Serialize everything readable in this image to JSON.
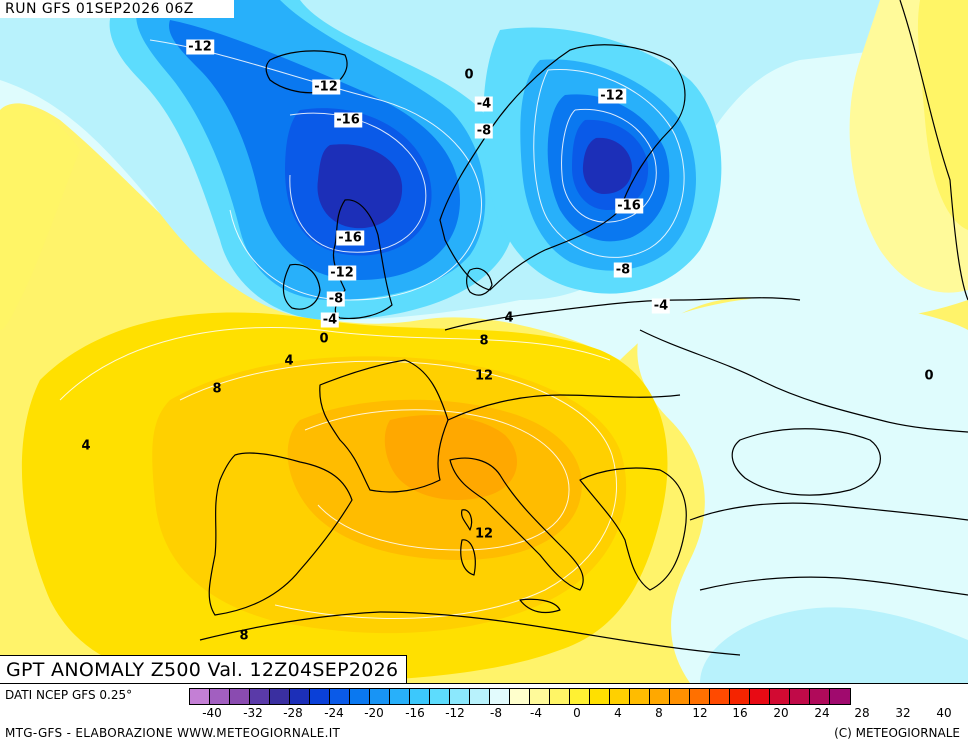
{
  "header": {
    "run": "RUN GFS 01SEP2026 06Z",
    "title": "GPT ANOMALY Z500 Val. 12Z04SEP2026"
  },
  "footer": {
    "source": "DATI NCEP GFS 0.25°",
    "site": "MTG-GFS - ELABORAZIONE WWW.METEOGIORNALE.IT",
    "copyright": "(C) METEOGIORNALE"
  },
  "legend": {
    "colors": [
      "#c47fd5",
      "#a25fc0",
      "#8a4bb0",
      "#5a3aa8",
      "#3a2fa0",
      "#1c2fb8",
      "#0a40d8",
      "#0a5ae8",
      "#0a78f0",
      "#1894f5",
      "#28b0fa",
      "#3cc8fc",
      "#5ddcfd",
      "#8be8fd",
      "#b8f2fc",
      "#e2fbfd",
      "#ffffcc",
      "#fffa9a",
      "#fff566",
      "#fff133",
      "#ffe000",
      "#ffd000",
      "#ffbc00",
      "#ffa800",
      "#ff9000",
      "#ff7000",
      "#ff4a00",
      "#f52400",
      "#e80a14",
      "#d20a32",
      "#c00a48",
      "#b00a5a",
      "#a00a6e"
    ],
    "ticks": [
      "-40",
      "-32",
      "-28",
      "-24",
      "-20",
      "-16",
      "-12",
      "-8",
      "-4",
      "0",
      "4",
      "8",
      "12",
      "16",
      "20",
      "24",
      "28",
      "32",
      "40"
    ]
  },
  "contour_labels": [
    {
      "text": "-12",
      "boxed": true
    },
    {
      "text": "-12",
      "boxed": true
    },
    {
      "text": "-16",
      "boxed": true
    },
    {
      "text": "-16",
      "boxed": true
    },
    {
      "text": "-12",
      "boxed": true
    },
    {
      "text": "-8",
      "boxed": true
    },
    {
      "text": "-4",
      "boxed": true
    },
    {
      "text": "0",
      "boxed": false
    },
    {
      "text": "0",
      "boxed": false
    },
    {
      "text": "-4",
      "boxed": true
    },
    {
      "text": "-8",
      "boxed": true
    },
    {
      "text": "-12",
      "boxed": true
    },
    {
      "text": "-16",
      "boxed": true
    },
    {
      "text": "-8",
      "boxed": true
    },
    {
      "text": "-4",
      "boxed": true
    },
    {
      "text": "4",
      "boxed": false
    },
    {
      "text": "8",
      "boxed": false
    },
    {
      "text": "12",
      "boxed": false
    },
    {
      "text": "4",
      "boxed": false
    },
    {
      "text": "8",
      "boxed": false
    },
    {
      "text": "4",
      "boxed": false
    },
    {
      "text": "12",
      "boxed": false
    },
    {
      "text": "8",
      "boxed": false
    },
    {
      "text": "0",
      "boxed": false
    }
  ]
}
